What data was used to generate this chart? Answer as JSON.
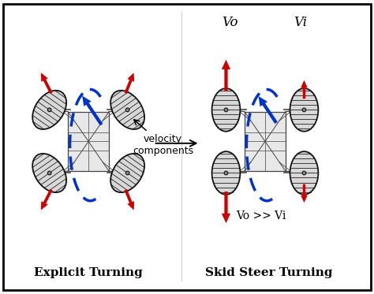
{
  "background_color": "#ffffff",
  "border_color": "#000000",
  "title_left": "Explicit Turning",
  "title_right": "Skid Steer Turning",
  "label_vo": "Vo",
  "label_vi": "Vi",
  "label_vo_vi": "Vo >> Vi",
  "label_velocity": "velocity\ncomponents",
  "arrow_color_red": "#cc0000",
  "arrow_color_blue": "#0033cc",
  "chassis_color": "#444444",
  "wheel_edge": "#111111",
  "wheel_fill": "#d8d8d8",
  "dashed_line_color": "#0033cc",
  "text_fontsize": 11,
  "label_fontsize": 10,
  "small_fontsize": 9,
  "fig_w": 4.74,
  "fig_h": 3.73,
  "dpi": 100
}
